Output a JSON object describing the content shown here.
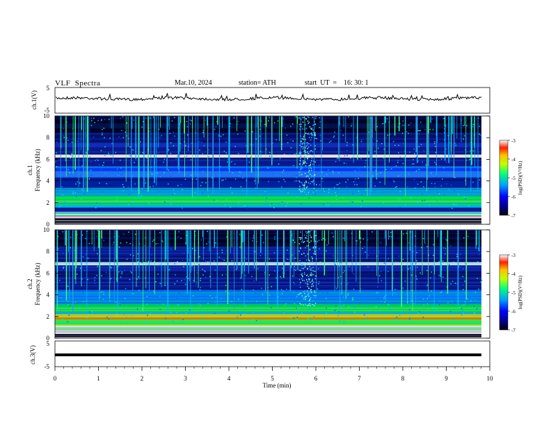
{
  "header": {
    "title": "VLF  Spectra",
    "date": "Mar.10, 2024",
    "station": "station= ATH",
    "start": "start  UT  =    16: 30: 1"
  },
  "chart_data": [
    {
      "type": "line",
      "ylabel": "ch.1(V)",
      "yticks": [
        "5",
        "-5"
      ],
      "ylim": [
        -5,
        5
      ],
      "xlim": [
        0,
        10
      ]
    },
    {
      "type": "heatmap",
      "ylabel": "ch.1\nFrequency (kHz)",
      "yticks": [
        "0",
        "2",
        "4",
        "6",
        "8",
        "10"
      ],
      "ylim": [
        0,
        10
      ],
      "xlim": [
        0,
        10
      ],
      "colorbar": {
        "label": "log(PSD)(V²/Hz)",
        "ticks": [
          "-3",
          "-4",
          "-5",
          "-6",
          "-7"
        ],
        "range": [
          -7,
          -3
        ]
      }
    },
    {
      "type": "heatmap",
      "ylabel": "ch.2\nFrequency (kHz)",
      "yticks": [
        "0",
        "2",
        "4",
        "6",
        "8",
        "10"
      ],
      "ylim": [
        0,
        10
      ],
      "xlim": [
        0,
        10
      ],
      "colorbar": {
        "label": "log(PSD)(V²/Hz)",
        "ticks": [
          "-3",
          "-4",
          "-5",
          "-6",
          "-7"
        ],
        "range": [
          -7,
          -3
        ]
      }
    },
    {
      "type": "line",
      "ylabel": "ch.3(V)",
      "yticks": [
        "5",
        "-5"
      ],
      "ylim": [
        -5,
        5
      ],
      "xlim": [
        0,
        10
      ],
      "xlabel": "Time  (min)",
      "xticks": [
        "0",
        "1",
        "2",
        "3",
        "4",
        "5",
        "6",
        "7",
        "8",
        "9",
        "10"
      ]
    }
  ],
  "labels": {
    "ch1_v": "ch.1(V)",
    "ch1_name": "ch.1",
    "ch1_freq": "Frequency (kHz)",
    "ch2_name": "ch.2",
    "ch2_freq": "Frequency (kHz)",
    "ch3_v": "ch.3(V)",
    "xlabel": "Time  (min)",
    "colorbar": "log(PSD)(V²/Hz)"
  }
}
